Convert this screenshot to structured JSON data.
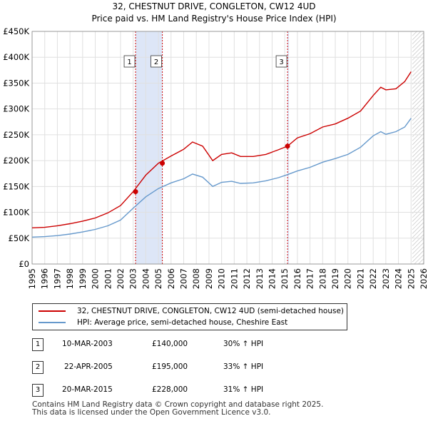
{
  "header": {
    "title": "32, CHESTNUT DRIVE, CONGLETON, CW12 4UD",
    "subtitle": "Price paid vs. HM Land Registry's House Price Index (HPI)"
  },
  "chart_data": {
    "type": "line",
    "xlim": [
      1995,
      2026
    ],
    "ylim": [
      0,
      450000
    ],
    "x_ticks": [
      "1995",
      "1996",
      "1997",
      "1998",
      "1999",
      "2000",
      "2001",
      "2002",
      "2003",
      "2004",
      "2005",
      "2006",
      "2007",
      "2008",
      "2009",
      "2010",
      "2011",
      "2012",
      "2013",
      "2014",
      "2015",
      "2016",
      "2017",
      "2018",
      "2019",
      "2020",
      "2021",
      "2022",
      "2023",
      "2024",
      "2025",
      "2026"
    ],
    "y_ticks": [
      {
        "value": 0,
        "label": "£0"
      },
      {
        "value": 50000,
        "label": "£50K"
      },
      {
        "value": 100000,
        "label": "£100K"
      },
      {
        "value": 150000,
        "label": "£150K"
      },
      {
        "value": 200000,
        "label": "£200K"
      },
      {
        "value": 250000,
        "label": "£250K"
      },
      {
        "value": 300000,
        "label": "£300K"
      },
      {
        "value": 350000,
        "label": "£350K"
      },
      {
        "value": 400000,
        "label": "£400K"
      },
      {
        "value": 450000,
        "label": "£450K"
      }
    ],
    "grid": true,
    "shaded_periods": [
      [
        2003.19,
        2005.31
      ],
      [
        2015.22,
        2015.3
      ]
    ],
    "future_hatch_from": 2025.1,
    "series": [
      {
        "name": "32, CHESTNUT DRIVE, CONGLETON, CW12 4UD (semi-detached house)",
        "color": "#cc0000",
        "points": [
          [
            1995,
            70000
          ],
          [
            1996,
            71000
          ],
          [
            1997,
            74000
          ],
          [
            1998,
            78000
          ],
          [
            1999,
            83000
          ],
          [
            2000,
            89000
          ],
          [
            2001,
            99000
          ],
          [
            2002,
            113000
          ],
          [
            2003,
            140000
          ],
          [
            2004,
            172000
          ],
          [
            2005,
            195000
          ],
          [
            2006,
            209000
          ],
          [
            2007,
            222000
          ],
          [
            2007.7,
            236000
          ],
          [
            2008.5,
            228000
          ],
          [
            2009.3,
            200000
          ],
          [
            2010,
            212000
          ],
          [
            2010.8,
            215000
          ],
          [
            2011.5,
            208000
          ],
          [
            2012.5,
            208000
          ],
          [
            2013.5,
            212000
          ],
          [
            2014.5,
            221000
          ],
          [
            2015.22,
            228000
          ],
          [
            2016,
            244000
          ],
          [
            2017,
            252000
          ],
          [
            2018,
            265000
          ],
          [
            2019,
            271000
          ],
          [
            2020,
            282000
          ],
          [
            2021,
            296000
          ],
          [
            2022,
            326000
          ],
          [
            2022.6,
            342000
          ],
          [
            2023,
            337000
          ],
          [
            2023.8,
            339000
          ],
          [
            2024.5,
            353000
          ],
          [
            2025,
            372000
          ]
        ]
      },
      {
        "name": "HPI: Average price, semi-detached house, Cheshire East",
        "color": "#6699cc",
        "points": [
          [
            1995,
            52000
          ],
          [
            1996,
            53000
          ],
          [
            1997,
            55000
          ],
          [
            1998,
            58000
          ],
          [
            1999,
            62000
          ],
          [
            2000,
            67000
          ],
          [
            2001,
            74000
          ],
          [
            2002,
            85000
          ],
          [
            2003,
            108000
          ],
          [
            2004,
            130000
          ],
          [
            2005,
            146000
          ],
          [
            2006,
            157000
          ],
          [
            2007,
            165000
          ],
          [
            2007.7,
            174000
          ],
          [
            2008.5,
            168000
          ],
          [
            2009.3,
            150000
          ],
          [
            2010,
            158000
          ],
          [
            2010.8,
            160000
          ],
          [
            2011.5,
            156000
          ],
          [
            2012.5,
            157000
          ],
          [
            2013.5,
            161000
          ],
          [
            2014.5,
            167000
          ],
          [
            2015.22,
            173000
          ],
          [
            2016,
            180000
          ],
          [
            2017,
            187000
          ],
          [
            2018,
            197000
          ],
          [
            2019,
            204000
          ],
          [
            2020,
            212000
          ],
          [
            2021,
            226000
          ],
          [
            2022,
            248000
          ],
          [
            2022.6,
            256000
          ],
          [
            2023,
            251000
          ],
          [
            2023.8,
            256000
          ],
          [
            2024.5,
            265000
          ],
          [
            2025,
            282000
          ]
        ]
      }
    ],
    "transactions": [
      {
        "id": "1",
        "x": 2003.19,
        "price": 140000,
        "date": "10-MAR-2003",
        "price_label": "£140,000",
        "hpi": "30% ↑ HPI"
      },
      {
        "id": "2",
        "x": 2005.31,
        "price": 195000,
        "date": "22-APR-2005",
        "price_label": "£195,000",
        "hpi": "33% ↑ HPI"
      },
      {
        "id": "3",
        "x": 2015.22,
        "price": 228000,
        "date": "20-MAR-2015",
        "price_label": "£228,000",
        "hpi": "31% ↑ HPI"
      }
    ]
  },
  "legend": {
    "entry1": "32, CHESTNUT DRIVE, CONGLETON, CW12 4UD (semi-detached house)",
    "entry2": "HPI: Average price, semi-detached house, Cheshire East"
  },
  "table": [
    {
      "id": "1",
      "date": "10-MAR-2003",
      "price": "£140,000",
      "hpi": "30% ↑ HPI"
    },
    {
      "id": "2",
      "date": "22-APR-2005",
      "price": "£195,000",
      "hpi": "33% ↑ HPI"
    },
    {
      "id": "3",
      "date": "20-MAR-2015",
      "price": "£228,000",
      "hpi": "31% ↑ HPI"
    }
  ],
  "footer": {
    "line1": "Contains HM Land Registry data © Crown copyright and database right 2025.",
    "line2": "This data is licensed under the Open Government Licence v3.0."
  }
}
